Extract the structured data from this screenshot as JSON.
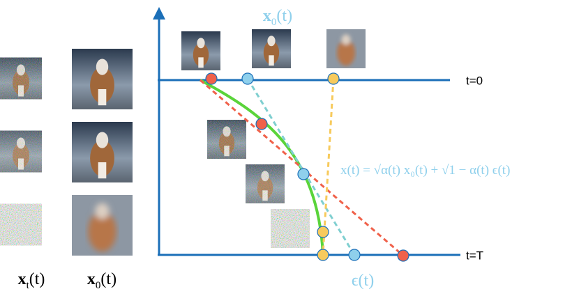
{
  "left_labels": [
    {
      "base": "x",
      "sub": "t",
      "arg": "(t)"
    },
    {
      "base": "x",
      "sub": "0",
      "arg": "(t)"
    }
  ],
  "top_label": {
    "base": "x",
    "sub": "0",
    "arg": "(t)"
  },
  "lines": {
    "top": "t=0",
    "bottom": "t=T"
  },
  "formula": "x(t) = √α(t) x₀(t) + √1 − α(t) ϵ(t)",
  "bottom_label": "ϵ(t)"
}
